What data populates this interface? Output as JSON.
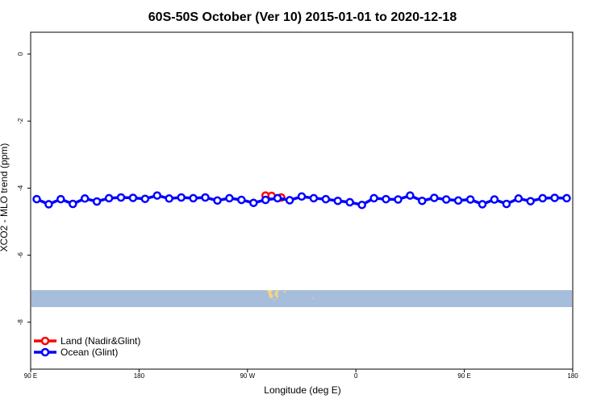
{
  "chart_data": {
    "type": "line",
    "title": "60S-50S October (Ver 10)   2015-01-01 to 2020-12-18",
    "xlabel": "Longitude (deg E)",
    "ylabel": "XCO2 - MLO trend (ppm)",
    "xlim": [
      90,
      540
    ],
    "ylim": [
      -9.4,
      0.65
    ],
    "x_ticks": [
      {
        "value": 90,
        "label": "90 E"
      },
      {
        "value": 180,
        "label": "180"
      },
      {
        "value": 270,
        "label": "90 W"
      },
      {
        "value": 360,
        "label": "0"
      },
      {
        "value": 450,
        "label": "90 E"
      },
      {
        "value": 540,
        "label": "180"
      }
    ],
    "y_ticks": [
      {
        "value": 0,
        "label": "0"
      },
      {
        "value": -2,
        "label": "-2"
      },
      {
        "value": -4,
        "label": "-4"
      },
      {
        "value": -6,
        "label": "-6"
      },
      {
        "value": -8,
        "label": "-8"
      }
    ],
    "grid": false,
    "legend_position": "bottom-left",
    "map_band": {
      "lat_range": [
        -60,
        -50
      ],
      "ocean_color": "#a6bddb",
      "land_color": "#f5d67a"
    },
    "series": [
      {
        "name": "Land (Nadir&Glint)",
        "color": "#ff0000",
        "x": [
          285,
          290,
          298
        ],
        "y": [
          -4.22,
          -4.23,
          -4.28
        ]
      },
      {
        "name": "Ocean (Glint)",
        "color": "#0000ff",
        "x": [
          95,
          105,
          115,
          125,
          135,
          145,
          155,
          165,
          175,
          185,
          195,
          205,
          215,
          225,
          235,
          245,
          255,
          265,
          275,
          285,
          295,
          305,
          315,
          325,
          335,
          345,
          355,
          365,
          375,
          385,
          395,
          405,
          415,
          425,
          435,
          445,
          455,
          465,
          475,
          485,
          495,
          505,
          515,
          525,
          535
        ],
        "y": [
          -4.33,
          -4.48,
          -4.33,
          -4.47,
          -4.31,
          -4.4,
          -4.3,
          -4.28,
          -4.29,
          -4.32,
          -4.22,
          -4.31,
          -4.28,
          -4.3,
          -4.28,
          -4.37,
          -4.3,
          -4.35,
          -4.44,
          -4.35,
          -4.3,
          -4.36,
          -4.25,
          -4.3,
          -4.33,
          -4.38,
          -4.42,
          -4.5,
          -4.3,
          -4.33,
          -4.34,
          -4.22,
          -4.38,
          -4.29,
          -4.34,
          -4.37,
          -4.34,
          -4.48,
          -4.34,
          -4.47,
          -4.31,
          -4.39,
          -4.3,
          -4.29,
          -4.3
        ]
      }
    ]
  }
}
